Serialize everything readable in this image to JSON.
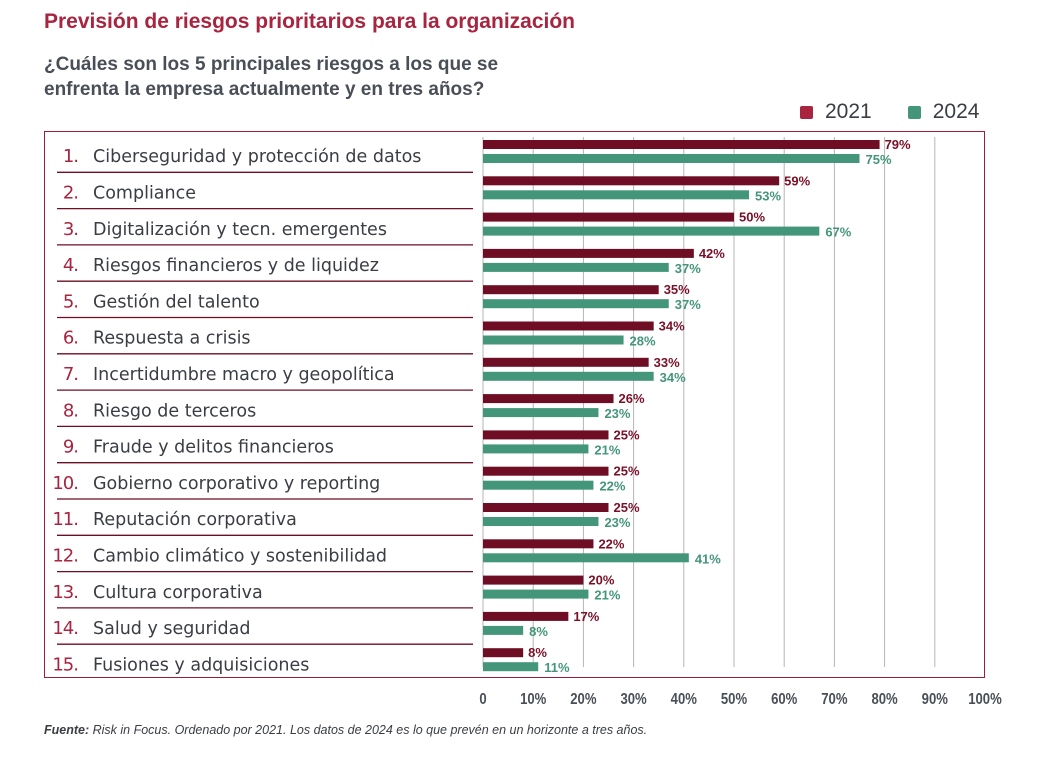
{
  "title": "Previsión de riesgos prioritarios para la organización",
  "subtitle_line1": "¿Cuáles son los 5 principales riesgos a los que se",
  "subtitle_line2": "enfrenta la empresa actualmente y en tres años?",
  "footer": {
    "source_label": "Fuente:",
    "source_text": " Risk in Focus. Ordenado por 2021. Los datos de 2024 es lo que prevén en un horizonte a tres años."
  },
  "colors": {
    "title": "#a8243f",
    "series_2021": "#6e0d23",
    "series_2024": "#44967a",
    "label_2021": "#7a1028",
    "label_2024": "#44967a",
    "frame": "#9b1d3c",
    "grid": "#b5b5b5",
    "numbers": "#a8243f",
    "text": "#3a3d44"
  },
  "chart_data": {
    "type": "bar",
    "orientation": "horizontal",
    "title": "Previsión de riesgos prioritarios para la organización",
    "subtitle": "¿Cuáles son los 5 principales riesgos a los que se enfrenta la empresa actualmente y en tres años?",
    "xlabel": "",
    "ylabel": "",
    "xlim": [
      0,
      100
    ],
    "x_ticks": [
      "0",
      "10%",
      "20%",
      "30%",
      "40%",
      "50%",
      "60%",
      "70%",
      "80%",
      "90%",
      "100%"
    ],
    "grid": true,
    "legend_position": "top-right",
    "categories": [
      {
        "num": "1.",
        "label": "Ciberseguridad y protección de datos"
      },
      {
        "num": "2.",
        "label": "Compliance"
      },
      {
        "num": "3.",
        "label": "Digitalización y tecn. emergentes"
      },
      {
        "num": "4.",
        "label": "Riesgos financieros y de liquidez"
      },
      {
        "num": "5.",
        "label": "Gestión del talento"
      },
      {
        "num": "6.",
        "label": "Respuesta a crisis"
      },
      {
        "num": "7.",
        "label": "Incertidumbre macro y geopolítica"
      },
      {
        "num": "8.",
        "label": "Riesgo de terceros"
      },
      {
        "num": "9.",
        "label": "Fraude y delitos financieros"
      },
      {
        "num": "10.",
        "label": "Gobierno corporativo y reporting"
      },
      {
        "num": "11.",
        "label": "Reputación corporativa"
      },
      {
        "num": "12.",
        "label": "Cambio climático y sostenibilidad"
      },
      {
        "num": "13.",
        "label": "Cultura corporativa"
      },
      {
        "num": "14.",
        "label": "Salud y seguridad"
      },
      {
        "num": "15.",
        "label": "Fusiones y adquisiciones"
      }
    ],
    "series": [
      {
        "name": "2021",
        "values": [
          79,
          59,
          50,
          42,
          35,
          34,
          33,
          26,
          25,
          25,
          25,
          22,
          20,
          17,
          8
        ]
      },
      {
        "name": "2024",
        "values": [
          75,
          53,
          67,
          37,
          37,
          28,
          34,
          23,
          21,
          22,
          23,
          41,
          21,
          8,
          11
        ]
      }
    ]
  }
}
